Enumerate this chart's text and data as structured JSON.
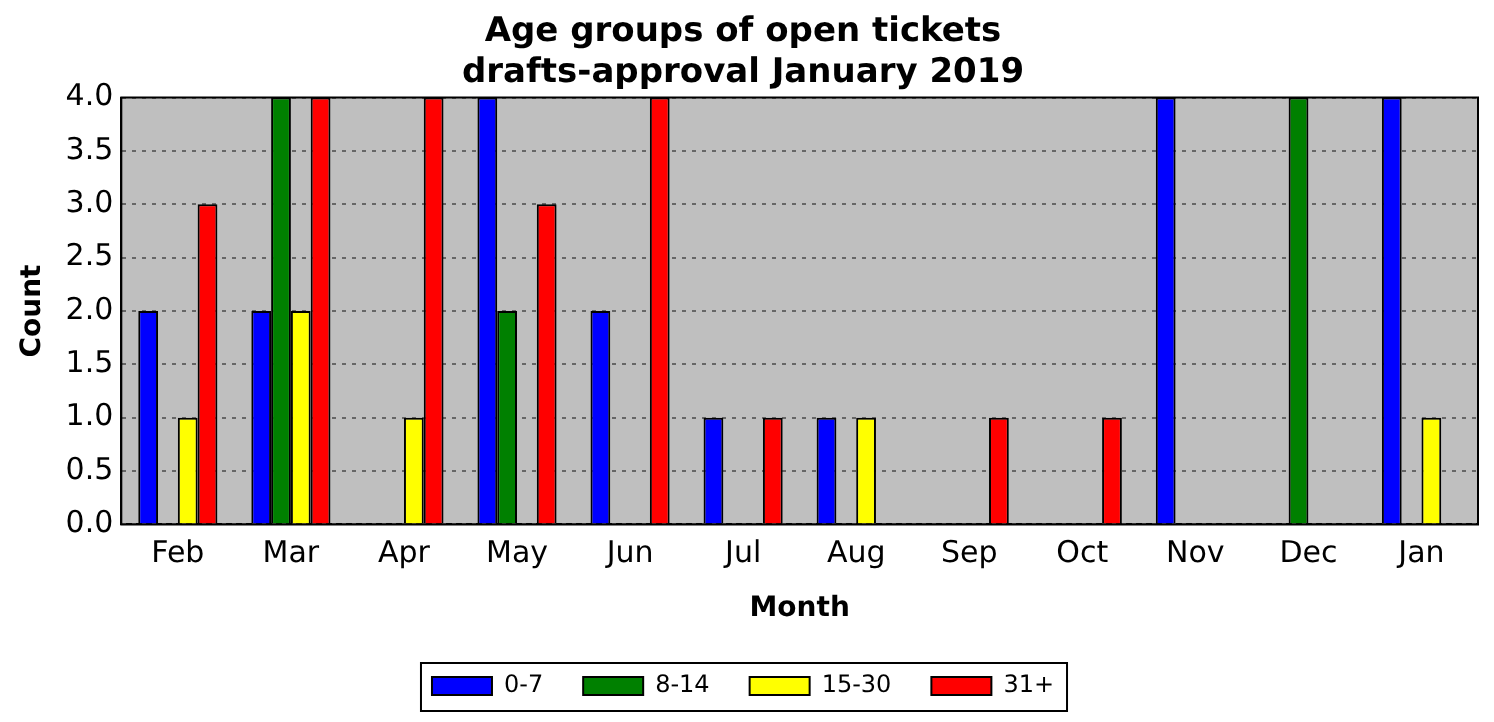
{
  "chart_data": {
    "type": "bar",
    "title": "Age groups of open tickets\ndrafts-approval January 2019",
    "xlabel": "Month",
    "ylabel": "Count",
    "categories": [
      "Feb",
      "Mar",
      "Apr",
      "May",
      "Jun",
      "Jul",
      "Aug",
      "Sep",
      "Oct",
      "Nov",
      "Dec",
      "Jan"
    ],
    "series": [
      {
        "name": "0-7",
        "color": "#0000ff",
        "values": [
          2,
          2,
          0,
          4,
          2,
          1,
          1,
          0,
          0,
          4,
          0,
          4
        ]
      },
      {
        "name": "8-14",
        "color": "#008000",
        "values": [
          0,
          4,
          0,
          2,
          0,
          0,
          0,
          0,
          0,
          0,
          4,
          0
        ]
      },
      {
        "name": "15-30",
        "color": "#ffff00",
        "values": [
          1,
          2,
          1,
          0,
          0,
          0,
          1,
          0,
          0,
          0,
          0,
          1
        ]
      },
      {
        "name": "31+",
        "color": "#ff0000",
        "values": [
          3,
          4,
          4,
          3,
          4,
          1,
          0,
          1,
          1,
          0,
          0,
          0
        ]
      }
    ],
    "ylim": [
      0,
      4
    ],
    "yticks": [
      {
        "value": 0,
        "label": "0.0"
      },
      0.5,
      {
        "value": 1,
        "label": "1.0"
      },
      1.5,
      {
        "value": 2,
        "label": "2.0"
      },
      2.5,
      {
        "value": 3,
        "label": "3.0"
      },
      3.5,
      {
        "value": 4,
        "label": "4.0"
      }
    ],
    "grid": "y",
    "legend": "bottom"
  }
}
